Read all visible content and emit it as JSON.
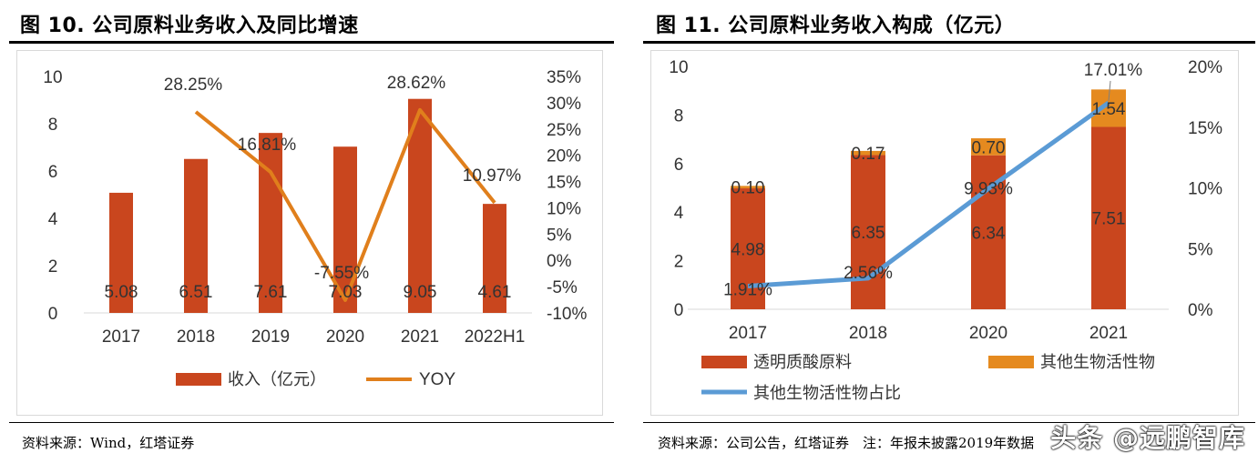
{
  "chart_data": [
    {
      "type": "bar+line",
      "title": "图 10. 公司原料业务收入及同比增速",
      "categories": [
        "2017",
        "2018",
        "2019",
        "2020",
        "2021",
        "2022H1"
      ],
      "series": [
        {
          "name": "收入（亿元）",
          "type": "bar",
          "axis": "left",
          "color": "#C9461E",
          "values": [
            5.08,
            6.51,
            7.61,
            7.03,
            9.05,
            4.61
          ],
          "labels": [
            "5.08",
            "6.51",
            "7.61",
            "7.03",
            "9.05",
            "4.61"
          ]
        },
        {
          "name": "YOY",
          "type": "line",
          "axis": "right",
          "color": "#E07F1C",
          "values": [
            null,
            28.25,
            16.81,
            -7.55,
            28.62,
            10.97
          ],
          "labels": [
            "",
            "28.25%",
            "16.81%",
            "-7.55%",
            "28.62%",
            "10.97%"
          ]
        }
      ],
      "ylim_left": [
        0,
        10
      ],
      "ylim_right": [
        -10,
        35
      ],
      "yticks_left": [
        "0",
        "2",
        "4",
        "6",
        "8",
        "10"
      ],
      "yticks_right": [
        "-10%",
        "-5%",
        "0%",
        "5%",
        "10%",
        "15%",
        "20%",
        "25%",
        "30%",
        "35%"
      ],
      "legend": "bottom",
      "grid": false,
      "source": "资料来源：Wind，红塔证券"
    },
    {
      "type": "stacked-bar+line",
      "title": "图 11. 公司原料业务收入构成（亿元）",
      "categories": [
        "2017",
        "2018",
        "2020",
        "2021"
      ],
      "series": [
        {
          "name": "透明质酸原料",
          "type": "bar",
          "axis": "left",
          "color": "#C9461E",
          "values": [
            4.98,
            6.35,
            6.34,
            7.51
          ],
          "labels": [
            "4.98",
            "6.35",
            "6.34",
            "7.51"
          ]
        },
        {
          "name": "其他生物活性物",
          "type": "bar",
          "axis": "left",
          "color": "#E58A1F",
          "values": [
            0.1,
            0.17,
            0.7,
            1.54
          ],
          "labels": [
            "0.10",
            "0.17",
            "0.70",
            "1.54"
          ]
        },
        {
          "name": "其他生物活性物占比",
          "type": "line",
          "axis": "right",
          "color": "#5B9BD5",
          "values": [
            1.91,
            2.56,
            9.93,
            17.01
          ],
          "labels": [
            "1.91%",
            "2.56%",
            "9.93%",
            "17.01%"
          ]
        }
      ],
      "ylim_left": [
        0,
        10
      ],
      "ylim_right": [
        0,
        20
      ],
      "yticks_left": [
        "0",
        "2",
        "4",
        "6",
        "8",
        "10"
      ],
      "yticks_right": [
        "0%",
        "5%",
        "10%",
        "15%",
        "20%"
      ],
      "legend": "bottom",
      "grid": false,
      "source": "资料来源：公司公告，红塔证券　注：年报未披露2019年数据"
    }
  ],
  "watermark": "头条 @远鹏智库"
}
